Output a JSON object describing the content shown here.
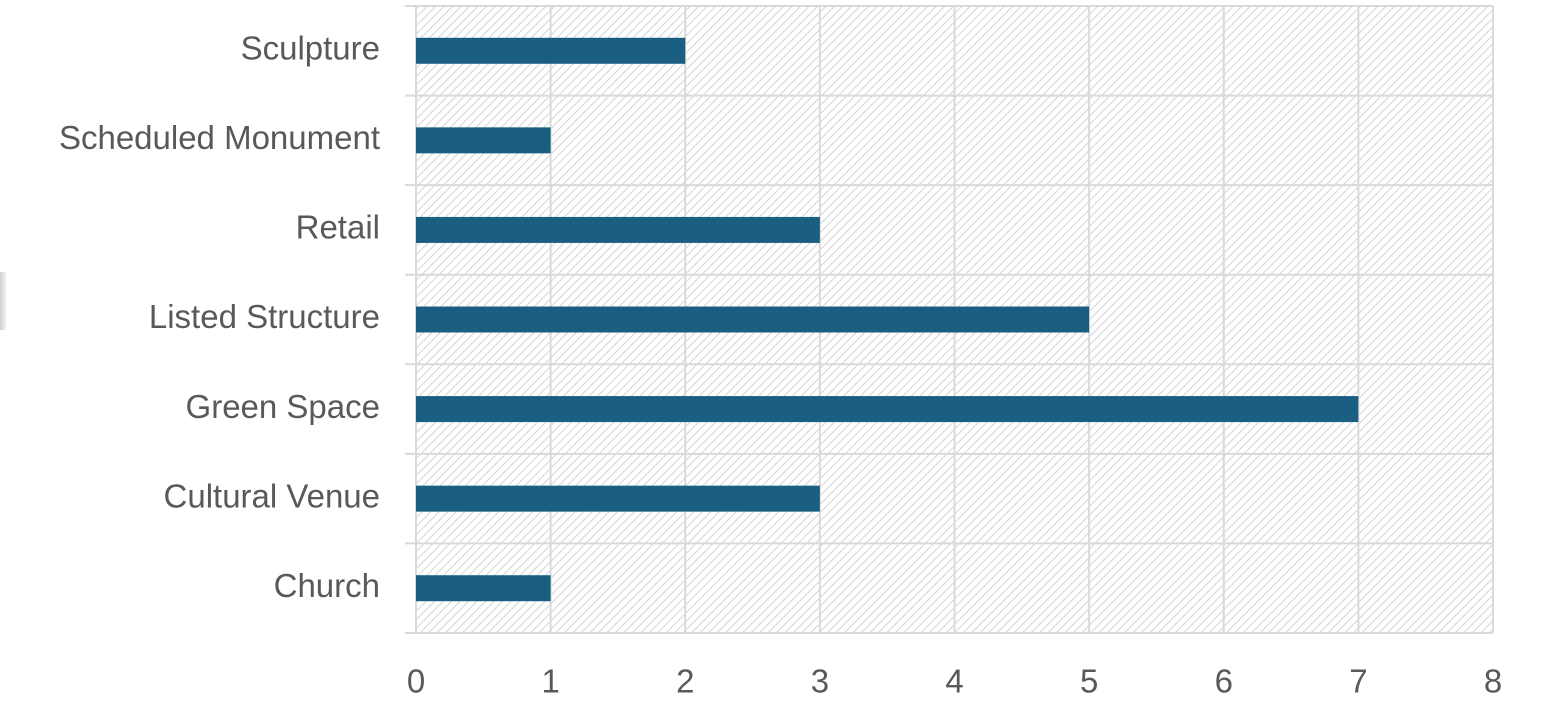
{
  "chart_data": {
    "type": "bar",
    "orientation": "horizontal",
    "categories": [
      "Church",
      "Cultural Venue",
      "Green Space",
      "Listed Structure",
      "Retail",
      "Scheduled Monument",
      "Sculpture"
    ],
    "values": [
      1,
      3,
      7,
      5,
      3,
      1,
      2
    ],
    "color": "#1a5f82",
    "xlim": [
      0,
      8
    ],
    "xticks": [
      0,
      1,
      2,
      3,
      4,
      5,
      6,
      7,
      8
    ],
    "grid": true
  }
}
